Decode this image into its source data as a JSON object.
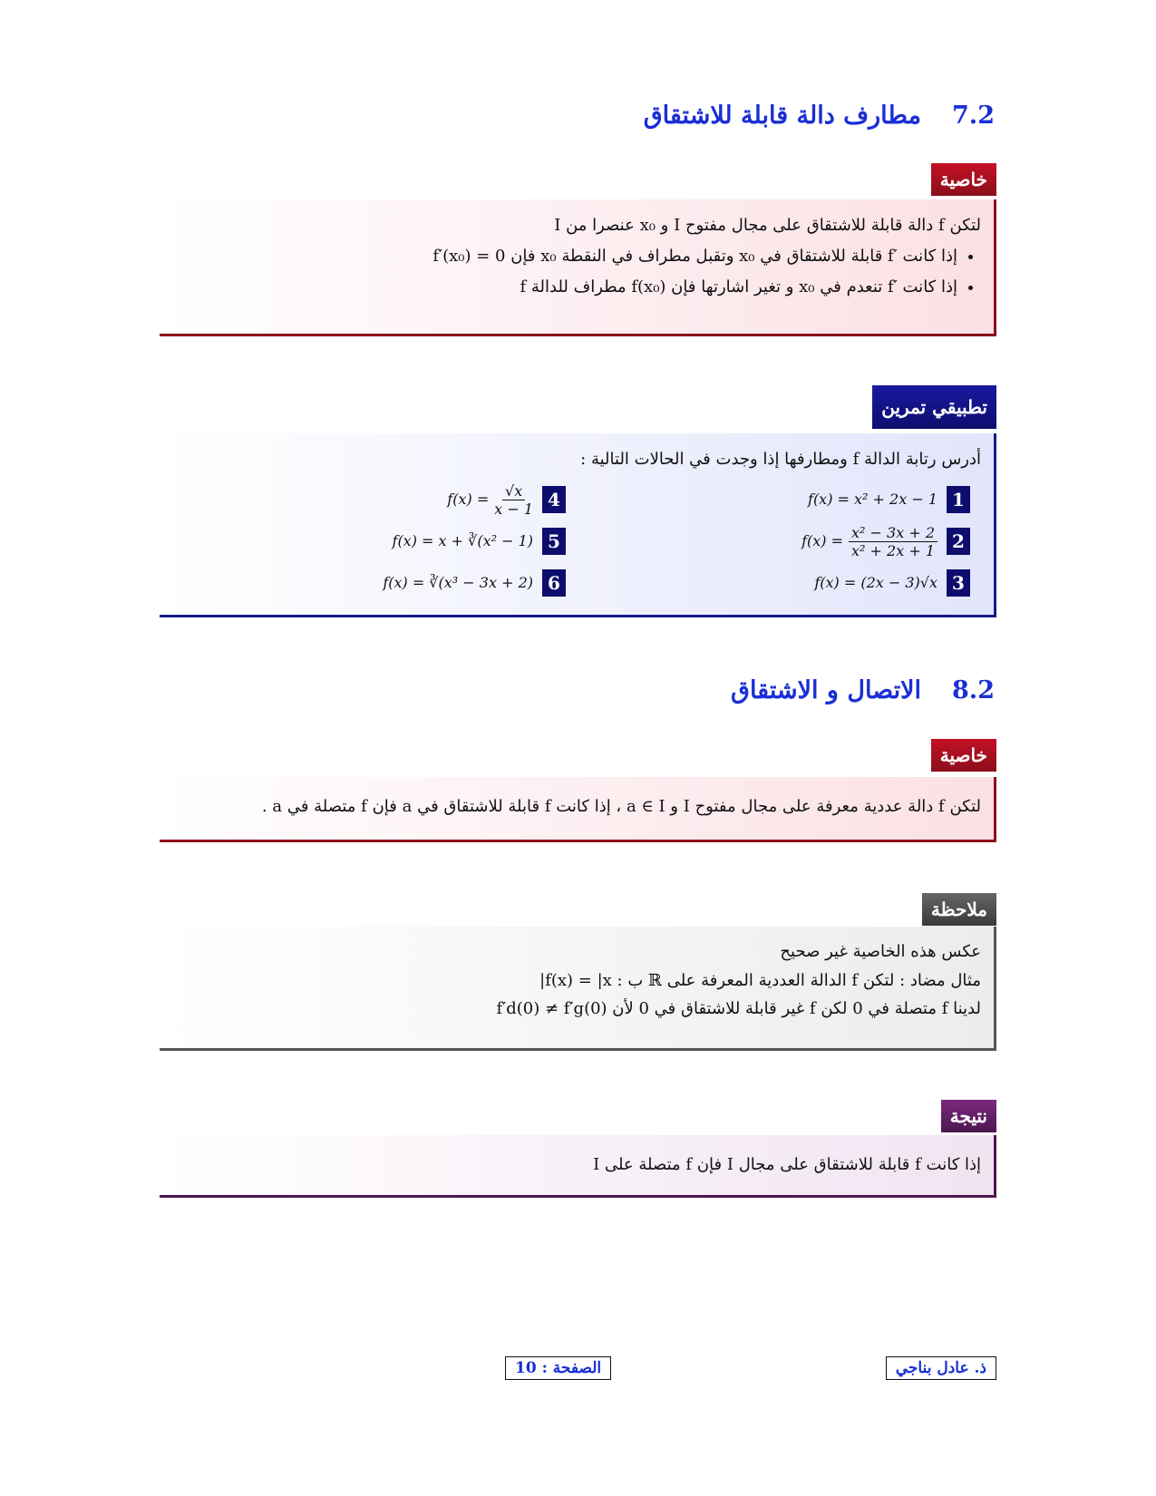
{
  "section_1": {
    "number": "7.2",
    "title": "مطارف دالة قابلة للاشتقاق"
  },
  "box_1": {
    "label": "خاصية",
    "intro": "لتكن f دالة قابلة للاشتقاق على مجال مفتوح I و x₀ عنصرا من I",
    "bullets": [
      "إذا كانت ′f قابلة للاشتقاق في x₀ وتقبل مطراف في النقطة x₀ فإن f′(x₀) = 0",
      "إذا كانت ′f تنعدم في x₀ و تغير اشارتها فإن f(x₀) مطراف للدالة f"
    ]
  },
  "box_2": {
    "label": "تطبيقي تمرين",
    "intro": "أدرس رتابة الدالة f ومطارفها إذا وجدت في الحالات التالية :",
    "items": [
      {
        "number": "1",
        "formula": "f(x) = x² + 2x − 1"
      },
      {
        "number": "2",
        "lhs": "f(x) =",
        "numerator": "x² − 3x + 2",
        "denominator": "x² + 2x + 1"
      },
      {
        "number": "3",
        "formula": "f(x) = (2x − 3)√x"
      },
      {
        "number": "4",
        "lhs": "f(x) =",
        "numerator": "√x",
        "denominator": "x − 1"
      },
      {
        "number": "5",
        "formula": "f(x) = x + ∛(x² − 1)"
      },
      {
        "number": "6",
        "formula": "f(x) = ∛(x³ − 3x + 2)"
      }
    ]
  },
  "section_2": {
    "number": "8.2",
    "title": "الاتصال و الاشتقاق"
  },
  "box_3": {
    "label": "خاصية",
    "text": "لتكن f دالة عددية معرفة على مجال مفتوح I و a ∈ I ، إذا كانت f قابلة للاشتقاق في a فإن f متصلة في a ."
  },
  "box_4": {
    "label": "ملاحظة",
    "lines": [
      "عكس هذه الخاصية غير صحيح",
      "مثال مضاد : لتكن f الدالة العددية المعرفة على ℝ ب : f(x) = |x|",
      "لدينا f متصلة في 0 لكن f غير قابلة للاشتقاق في 0 لأن f′d(0) ≠ f′g(0)"
    ]
  },
  "box_5": {
    "label": "نتيجة",
    "text": "إذا كانت f قابلة للاشتقاق على مجال I فإن f متصلة على I"
  },
  "footer": {
    "author": "ذ. عادل بناجي",
    "page": "الصفحة : 10"
  }
}
